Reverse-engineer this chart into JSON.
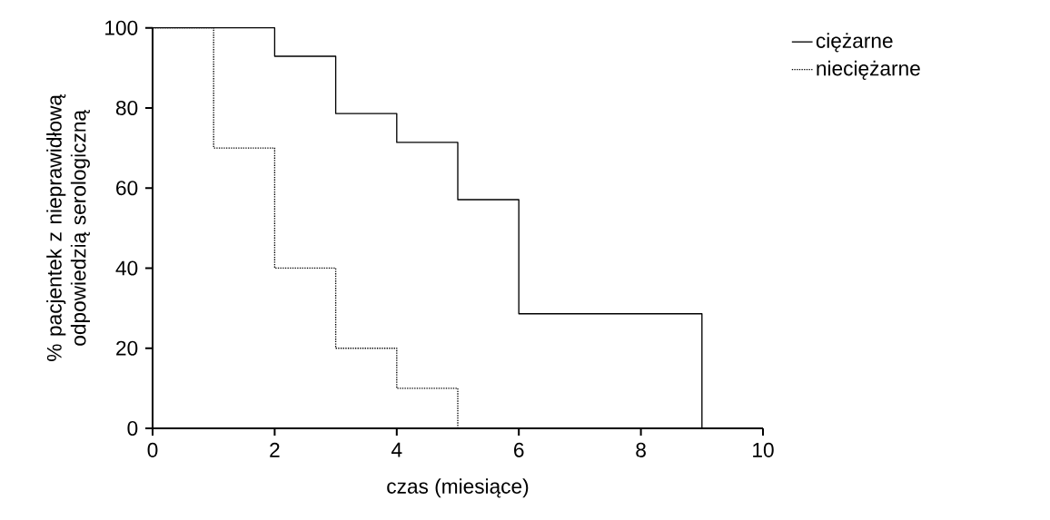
{
  "chart_data": {
    "type": "step",
    "xlabel": "czas (miesiące)",
    "ylabel": "% pacjentek z nieprawidłową odpowiedzią serologiczną",
    "series": [
      {
        "name": "ciężarne",
        "color": "#000000",
        "line_style": "solid",
        "x": [
          0,
          2,
          3,
          4,
          5,
          6,
          9
        ],
        "values": [
          100,
          92.9,
          78.6,
          71.4,
          57.1,
          28.6,
          0
        ]
      },
      {
        "name": "nieciężarne",
        "color": "#000000",
        "line_style": "dotted",
        "x": [
          0,
          1,
          2,
          3,
          4,
          5
        ],
        "values": [
          100,
          70,
          40,
          20,
          10,
          0
        ]
      }
    ],
    "xlim": [
      0,
      10
    ],
    "xticks": [
      0,
      2,
      4,
      6,
      8,
      10
    ],
    "ylim": [
      0,
      100
    ],
    "yticks": [
      0,
      20,
      40,
      60,
      80,
      100
    ],
    "grid": false,
    "legend": "top right"
  }
}
